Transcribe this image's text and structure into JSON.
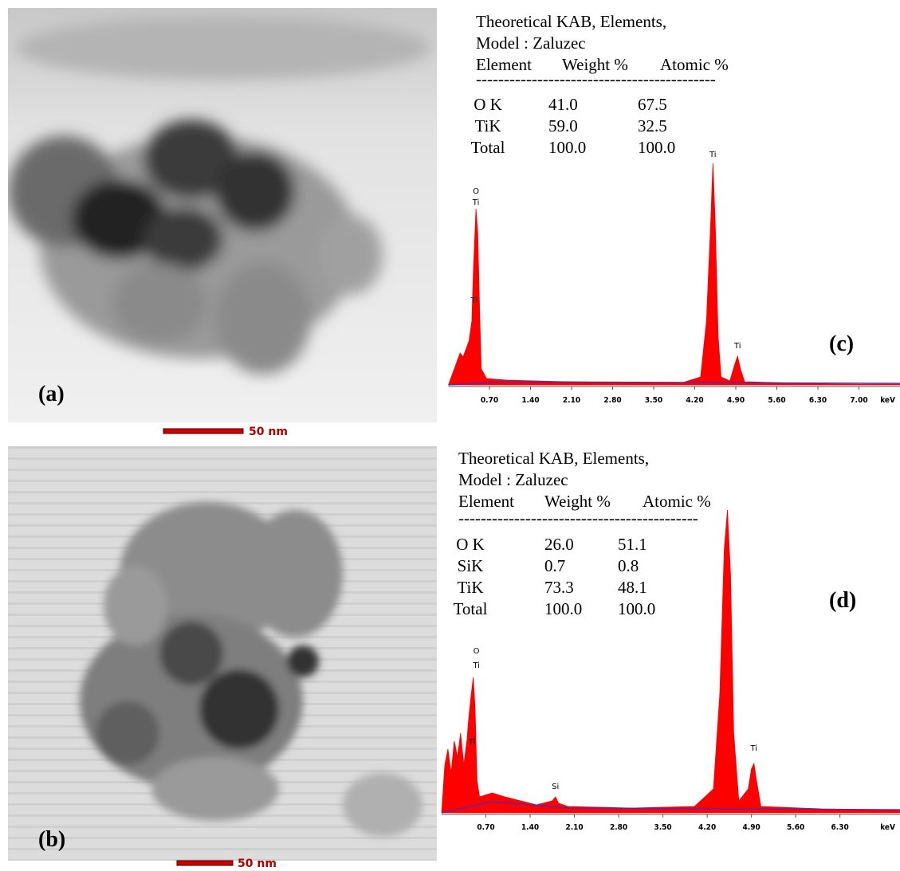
{
  "images": [
    {
      "label": "(a)",
      "scale_bar": "50 nm"
    },
    {
      "label": "(b)",
      "scale_bar": "50 nm"
    }
  ],
  "chart_data": [
    {
      "type": "area",
      "label": "(c)",
      "table": {
        "title_lines": [
          "Theoretical KAB, Elements,",
          "Model : Zaluzec"
        ],
        "header": [
          "Element",
          "Weight %",
          "Atomic %"
        ],
        "separator": "-------------------------------------------",
        "rows": [
          [
            "O K",
            "41.0",
            "67.5"
          ],
          [
            "TiK",
            "59.0",
            "32.5"
          ],
          [
            "Total",
            "100.0",
            "100.0"
          ]
        ]
      },
      "x_label": "keV",
      "xlim": [
        0,
        7.7
      ],
      "xticks": [
        {
          "value": 0.7,
          "label": "0.70"
        },
        {
          "value": 1.4,
          "label": "1.40"
        },
        {
          "value": 2.1,
          "label": "2.10"
        },
        {
          "value": 2.8,
          "label": "2.80"
        },
        {
          "value": 3.5,
          "label": "3.50"
        },
        {
          "value": 4.2,
          "label": "4.20"
        },
        {
          "value": 4.9,
          "label": "4.90"
        },
        {
          "value": 5.6,
          "label": "5.60"
        },
        {
          "value": 6.3,
          "label": "6.30"
        },
        {
          "value": 7.0,
          "label": "7.00"
        }
      ],
      "ylim": [
        0,
        300
      ],
      "series": [
        {
          "color": "#ff0000",
          "x": [
            0,
            0.1,
            0.15,
            0.2,
            0.25,
            0.3,
            0.35,
            0.4,
            0.43,
            0.47,
            0.5,
            0.53,
            0.56,
            0.65,
            1.0,
            1.5,
            2.0,
            3.0,
            4.0,
            4.3,
            4.4,
            4.47,
            4.51,
            4.55,
            4.6,
            4.65,
            4.8,
            4.88,
            4.93,
            4.98,
            5.05,
            6.0,
            7.0,
            7.7
          ],
          "values": [
            0,
            20,
            30,
            40,
            35,
            45,
            55,
            80,
            150,
            221,
            190,
            100,
            20,
            8,
            6,
            5,
            4,
            3,
            3,
            10,
            80,
            200,
            278,
            200,
            60,
            10,
            5,
            25,
            36,
            20,
            4,
            2,
            1,
            1
          ]
        },
        {
          "color": "#3333cc",
          "x": [
            0,
            1.0,
            7.7
          ],
          "values": [
            0,
            4,
            2
          ]
        }
      ],
      "annotations": [
        {
          "text": "O",
          "x": 0.47,
          "y": 240
        },
        {
          "text": "Ti",
          "x": 0.47,
          "y": 226
        },
        {
          "text": "Ti",
          "x": 0.44,
          "y": 103
        },
        {
          "text": "Ti",
          "x": 4.51,
          "y": 286
        },
        {
          "text": "Ti",
          "x": 4.93,
          "y": 46
        }
      ]
    },
    {
      "type": "area",
      "label": "(d)",
      "table": {
        "title_lines": [
          "Theoretical KAB, Elements,",
          "Model : Zaluzec"
        ],
        "header": [
          "Element",
          "Weight %",
          "Atomic %"
        ],
        "separator": "-------------------------------------------",
        "rows": [
          [
            "O K",
            "26.0",
            "51.1"
          ],
          [
            "SiK",
            "0.7",
            "0.8"
          ],
          [
            "TiK",
            "73.3",
            "48.1"
          ],
          [
            "Total",
            "100.0",
            "100.0"
          ]
        ]
      },
      "x_label": "keV",
      "xlim": [
        0,
        7.25
      ],
      "xticks": [
        {
          "value": 0.7,
          "label": "0.70"
        },
        {
          "value": 1.4,
          "label": "1.40"
        },
        {
          "value": 2.1,
          "label": "2.10"
        },
        {
          "value": 2.8,
          "label": "2.80"
        },
        {
          "value": 3.5,
          "label": "3.50"
        },
        {
          "value": 4.2,
          "label": "4.20"
        },
        {
          "value": 4.9,
          "label": "4.90"
        },
        {
          "value": 5.6,
          "label": "5.60"
        },
        {
          "value": 6.3,
          "label": "6.30"
        }
      ],
      "ylim": [
        0,
        400
      ],
      "series": [
        {
          "color": "#ff0000",
          "x": [
            0,
            0.05,
            0.1,
            0.15,
            0.2,
            0.25,
            0.3,
            0.35,
            0.4,
            0.43,
            0.47,
            0.5,
            0.53,
            0.56,
            0.6,
            0.8,
            1.0,
            1.5,
            1.75,
            1.8,
            1.85,
            2.0,
            3.0,
            4.0,
            4.3,
            4.4,
            4.47,
            4.52,
            4.57,
            4.62,
            4.7,
            4.85,
            4.9,
            4.94,
            4.98,
            5.05,
            6.0,
            7.0,
            7.25
          ],
          "values": [
            0,
            60,
            80,
            50,
            90,
            70,
            100,
            60,
            90,
            120,
            150,
            170,
            130,
            40,
            20,
            25,
            20,
            10,
            15,
            20,
            12,
            8,
            6,
            8,
            30,
            150,
            330,
            380,
            300,
            100,
            15,
            30,
            55,
            62,
            40,
            8,
            5,
            4,
            3
          ]
        },
        {
          "color": "#3333cc",
          "x": [
            0,
            0.8,
            2.0,
            7.25
          ],
          "values": [
            0,
            14,
            6,
            4
          ]
        }
      ],
      "annotations": [
        {
          "text": "O",
          "x": 0.55,
          "y": 200
        },
        {
          "text": "Ti",
          "x": 0.55,
          "y": 182
        },
        {
          "text": "Ti",
          "x": 0.48,
          "y": 86
        },
        {
          "text": "Si",
          "x": 1.8,
          "y": 30
        },
        {
          "text": "Ti",
          "x": 4.94,
          "y": 78
        }
      ]
    }
  ]
}
